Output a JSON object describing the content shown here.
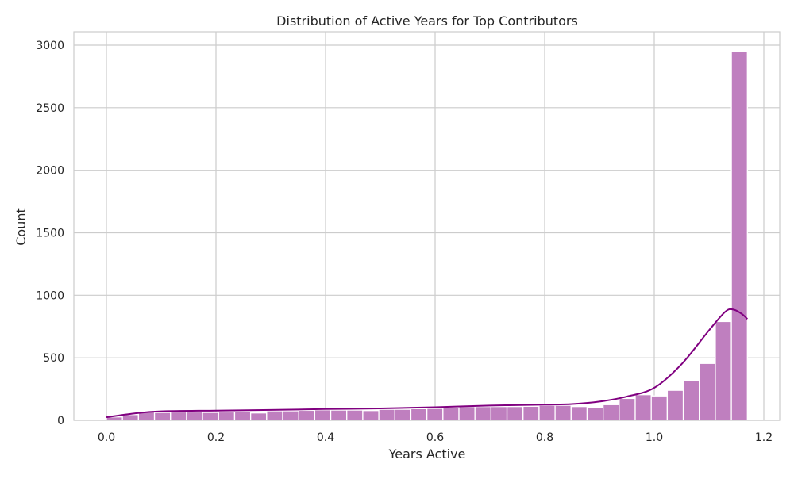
{
  "chart_data": {
    "type": "bar",
    "subtype": "histogram-with-kde",
    "title": "Distribution of Active Years for Top Contributors",
    "xlabel": "Years Active",
    "ylabel": "Count",
    "xlim": [
      -0.06,
      1.23
    ],
    "ylim": [
      0,
      3110
    ],
    "xticks": [
      0.0,
      0.2,
      0.4,
      0.6,
      0.8,
      1.0,
      1.2
    ],
    "xtick_labels": [
      "0.0",
      "0.2",
      "0.4",
      "0.6",
      "0.8",
      "1.0",
      "1.2"
    ],
    "yticks": [
      0,
      500,
      1000,
      1500,
      2000,
      2500,
      3000
    ],
    "ytick_labels": [
      "0",
      "500",
      "1000",
      "1500",
      "2000",
      "2500",
      "3000"
    ],
    "grid": true,
    "bar_color": "#bf7fbf",
    "bar_edge_color": "#ffffff",
    "kde_color": "#800080",
    "bin_range": [
      0.0,
      1.17
    ],
    "values": [
      27,
      46,
      74,
      63,
      67,
      67,
      63,
      67,
      74,
      59,
      76,
      76,
      80,
      84,
      82,
      82,
      78,
      88,
      88,
      93,
      95,
      100,
      110,
      110,
      110,
      110,
      112,
      120,
      120,
      110,
      105,
      125,
      175,
      205,
      195,
      240,
      320,
      455,
      790,
      2950
    ],
    "kde": [
      [
        0,
        25
      ],
      [
        0.05,
        55
      ],
      [
        0.1,
        72
      ],
      [
        0.2,
        78
      ],
      [
        0.3,
        83
      ],
      [
        0.4,
        90
      ],
      [
        0.5,
        95
      ],
      [
        0.6,
        105
      ],
      [
        0.7,
        118
      ],
      [
        0.8,
        125
      ],
      [
        0.85,
        130
      ],
      [
        0.9,
        150
      ],
      [
        0.95,
        190
      ],
      [
        1.0,
        260
      ],
      [
        1.05,
        450
      ],
      [
        1.1,
        720
      ],
      [
        1.13,
        870
      ],
      [
        1.145,
        885
      ],
      [
        1.16,
        850
      ],
      [
        1.17,
        810
      ]
    ]
  }
}
